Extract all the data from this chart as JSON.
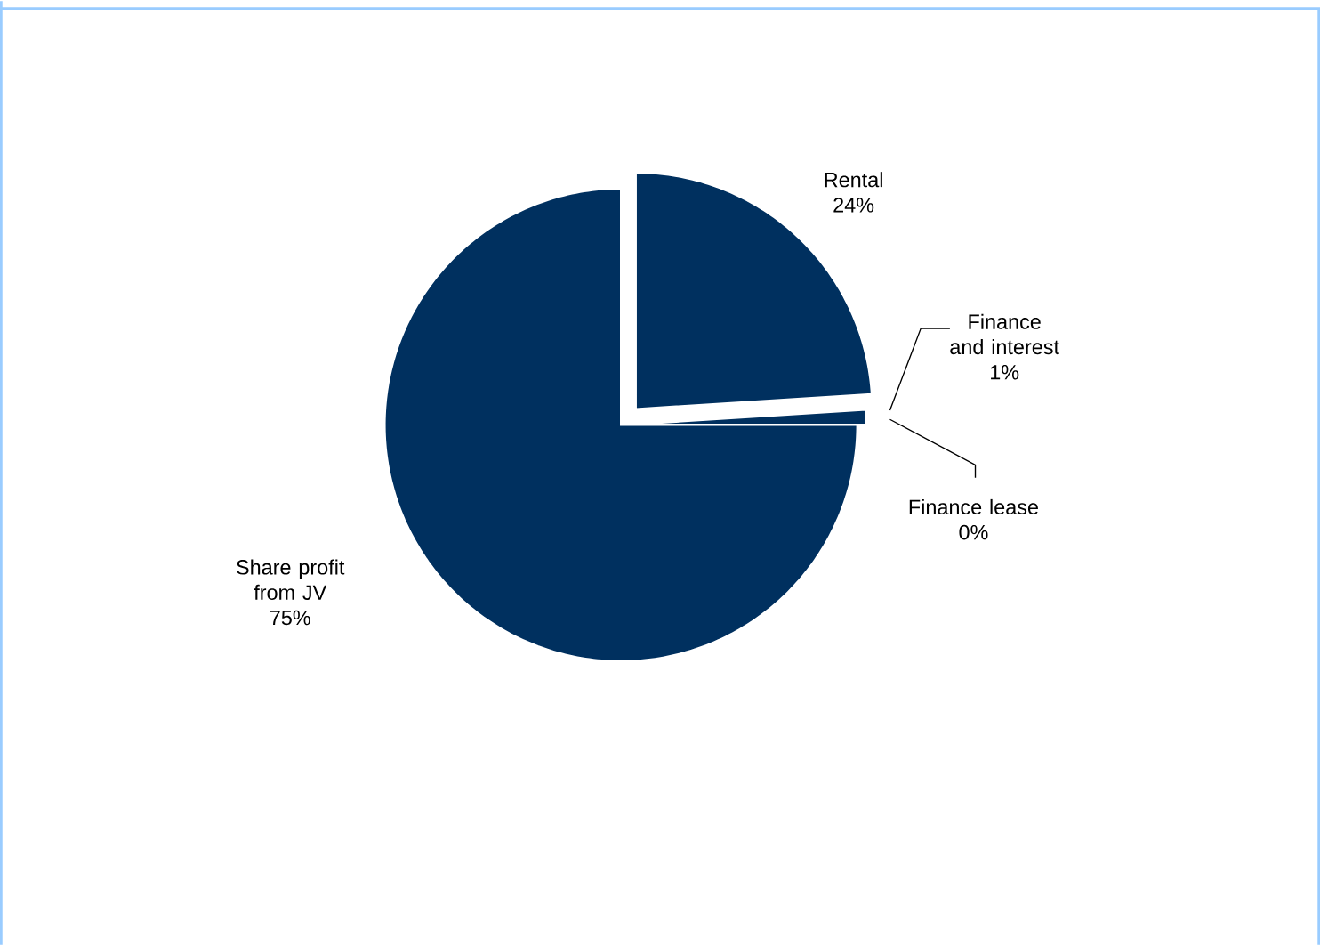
{
  "chart_data": {
    "type": "pie",
    "categories": [
      "Rental",
      "Finance and interest",
      "Finance lease",
      "Share profit from JV"
    ],
    "values": [
      24,
      1,
      0,
      75
    ],
    "value_labels": [
      "24%",
      "1%",
      "0%",
      "75%"
    ],
    "colors": [
      "#00305f",
      "#00305f",
      "#00305f",
      "#00305f"
    ]
  }
}
